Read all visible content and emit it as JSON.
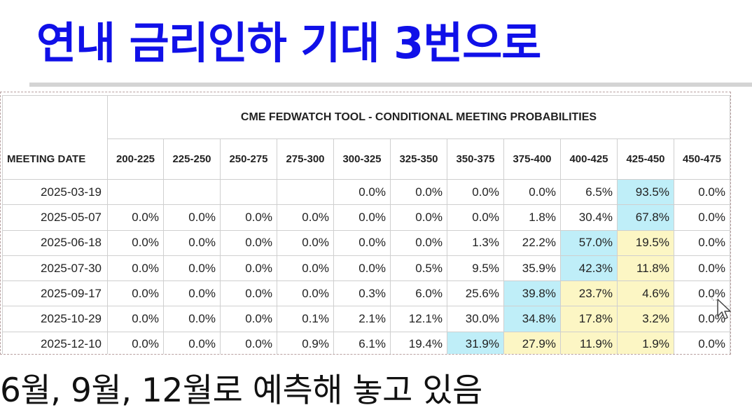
{
  "headline": "연내 금리인하 기대 3번으로",
  "caption": "6월, 9월, 12월로 예측해 놓고 있음",
  "table": {
    "title": "CME FEDWATCH TOOL - CONDITIONAL MEETING PROBABILITIES",
    "date_header": "MEETING DATE",
    "ranges": [
      "200-225",
      "225-250",
      "250-275",
      "275-300",
      "300-325",
      "325-350",
      "350-375",
      "375-400",
      "400-425",
      "425-450",
      "450-475"
    ],
    "rows": [
      {
        "date": "2025-03-19",
        "values": [
          "",
          "",
          "",
          "",
          "0.0%",
          "0.0%",
          "0.0%",
          "0.0%",
          "6.5%",
          "93.5%",
          "0.0%"
        ],
        "shade": [
          "",
          "",
          "",
          "",
          "",
          "",
          "",
          "",
          "",
          "hi",
          ""
        ]
      },
      {
        "date": "2025-05-07",
        "values": [
          "0.0%",
          "0.0%",
          "0.0%",
          "0.0%",
          "0.0%",
          "0.0%",
          "0.0%",
          "1.8%",
          "30.4%",
          "67.8%",
          "0.0%"
        ],
        "shade": [
          "",
          "",
          "",
          "",
          "",
          "",
          "",
          "",
          "",
          "hi",
          ""
        ]
      },
      {
        "date": "2025-06-18",
        "values": [
          "0.0%",
          "0.0%",
          "0.0%",
          "0.0%",
          "0.0%",
          "0.0%",
          "1.3%",
          "22.2%",
          "57.0%",
          "19.5%",
          "0.0%"
        ],
        "shade": [
          "",
          "",
          "",
          "",
          "",
          "",
          "",
          "",
          "hi",
          "mid",
          ""
        ]
      },
      {
        "date": "2025-07-30",
        "values": [
          "0.0%",
          "0.0%",
          "0.0%",
          "0.0%",
          "0.0%",
          "0.5%",
          "9.5%",
          "35.9%",
          "42.3%",
          "11.8%",
          "0.0%"
        ],
        "shade": [
          "",
          "",
          "",
          "",
          "",
          "",
          "",
          "",
          "hi",
          "mid",
          ""
        ]
      },
      {
        "date": "2025-09-17",
        "values": [
          "0.0%",
          "0.0%",
          "0.0%",
          "0.0%",
          "0.3%",
          "6.0%",
          "25.6%",
          "39.8%",
          "23.7%",
          "4.6%",
          "0.0%"
        ],
        "shade": [
          "",
          "",
          "",
          "",
          "",
          "",
          "",
          "hi",
          "mid",
          "mid",
          ""
        ]
      },
      {
        "date": "2025-10-29",
        "values": [
          "0.0%",
          "0.0%",
          "0.0%",
          "0.1%",
          "2.1%",
          "12.1%",
          "30.0%",
          "34.8%",
          "17.8%",
          "3.2%",
          "0.0%"
        ],
        "shade": [
          "",
          "",
          "",
          "",
          "",
          "",
          "",
          "hi",
          "mid",
          "mid",
          ""
        ]
      },
      {
        "date": "2025-12-10",
        "values": [
          "0.0%",
          "0.0%",
          "0.0%",
          "0.9%",
          "6.1%",
          "19.4%",
          "31.9%",
          "27.9%",
          "11.9%",
          "1.9%",
          "0.0%"
        ],
        "shade": [
          "",
          "",
          "",
          "",
          "",
          "",
          "hi",
          "mid",
          "mid",
          "mid",
          ""
        ]
      }
    ]
  },
  "colors": {
    "headline": "#1010e8",
    "highlight_max": "#bfeef8",
    "highlight_mid": "#fcf6c4"
  },
  "icons": {
    "pointer": "mouse-pointer-icon"
  }
}
